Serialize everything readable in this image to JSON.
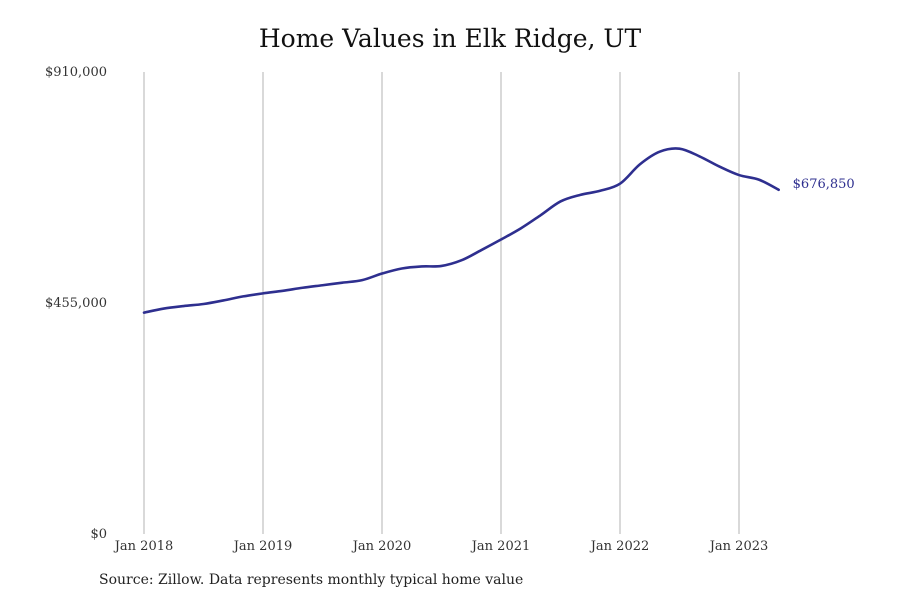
{
  "title": "Home Values in Elk Ridge, UT",
  "source": "Source: Zillow. Data represents monthly typical home value",
  "colors": {
    "line": "#2e2f8f",
    "grid": "#b3b3b3",
    "end_label": "#2e2f8f"
  },
  "chart_data": {
    "type": "line",
    "title": "Home Values in Elk Ridge, UT",
    "xlabel": "",
    "ylabel": "",
    "ylim": [
      0,
      910000
    ],
    "xlim": [
      "2018-01",
      "2024-01"
    ],
    "y_ticks": [
      {
        "value": 0,
        "label": "$0"
      },
      {
        "value": 455000,
        "label": "$455,000"
      },
      {
        "value": 910000,
        "label": "$910,000"
      }
    ],
    "x_ticks": [
      {
        "date": "2018-01",
        "label": "Jan 2018"
      },
      {
        "date": "2019-01",
        "label": "Jan 2019"
      },
      {
        "date": "2020-01",
        "label": "Jan 2020"
      },
      {
        "date": "2021-01",
        "label": "Jan 2021"
      },
      {
        "date": "2022-01",
        "label": "Jan 2022"
      },
      {
        "date": "2023-01",
        "label": "Jan 2023"
      }
    ],
    "grid": "vertical",
    "legend": "none",
    "end_label": "$676,850",
    "series": [
      {
        "values": [
          {
            "date": "2018-01",
            "value": 436000
          },
          {
            "date": "2018-03",
            "value": 444000
          },
          {
            "date": "2018-05",
            "value": 449000
          },
          {
            "date": "2018-07",
            "value": 453000
          },
          {
            "date": "2018-09",
            "value": 460000
          },
          {
            "date": "2018-11",
            "value": 468000
          },
          {
            "date": "2019-01",
            "value": 474000
          },
          {
            "date": "2019-03",
            "value": 479000
          },
          {
            "date": "2019-05",
            "value": 485000
          },
          {
            "date": "2019-07",
            "value": 490000
          },
          {
            "date": "2019-09",
            "value": 495000
          },
          {
            "date": "2019-11",
            "value": 500000
          },
          {
            "date": "2020-01",
            "value": 513000
          },
          {
            "date": "2020-03",
            "value": 523000
          },
          {
            "date": "2020-05",
            "value": 527000
          },
          {
            "date": "2020-07",
            "value": 528000
          },
          {
            "date": "2020-09",
            "value": 539000
          },
          {
            "date": "2020-11",
            "value": 559000
          },
          {
            "date": "2021-01",
            "value": 580000
          },
          {
            "date": "2021-03",
            "value": 602000
          },
          {
            "date": "2021-05",
            "value": 628000
          },
          {
            "date": "2021-07",
            "value": 655000
          },
          {
            "date": "2021-09",
            "value": 668000
          },
          {
            "date": "2021-11",
            "value": 676000
          },
          {
            "date": "2022-01",
            "value": 690000
          },
          {
            "date": "2022-03",
            "value": 728000
          },
          {
            "date": "2022-05",
            "value": 753000
          },
          {
            "date": "2022-07",
            "value": 759000
          },
          {
            "date": "2022-09",
            "value": 744000
          },
          {
            "date": "2022-11",
            "value": 724000
          },
          {
            "date": "2023-01",
            "value": 707000
          },
          {
            "date": "2023-03",
            "value": 698000
          },
          {
            "date": "2023-05",
            "value": 678000
          }
        ]
      }
    ]
  }
}
